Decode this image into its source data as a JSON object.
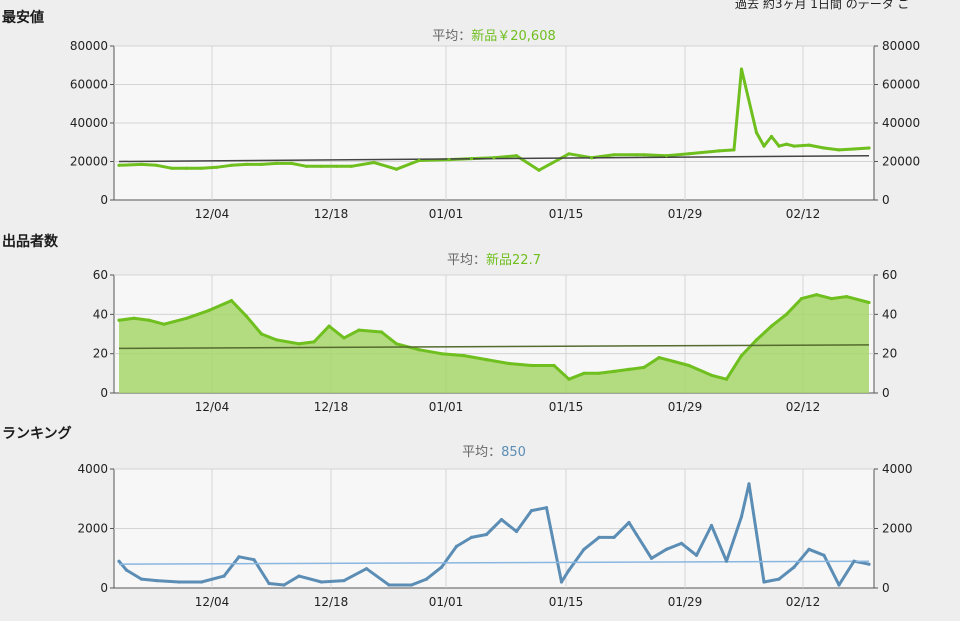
{
  "header_note": "過去 約3ヶ月 1日間 のデータ ご",
  "charts": [
    {
      "type": "line",
      "section_title": "最安値",
      "avg_label": "平均：",
      "avg_value": "新品￥20,608",
      "color": "#6fbf1f",
      "avg_color": "#444444",
      "fill": false,
      "x_ticks": [
        "12/04",
        "12/18",
        "01/01",
        "01/15",
        "01/29",
        "02/12"
      ],
      "y_ticks_left": [
        "0",
        "20000",
        "40000",
        "60000",
        "80000"
      ],
      "y_ticks_right": [
        "0",
        "20000",
        "40000",
        "60000",
        "80000"
      ],
      "ylim": [
        0,
        80000
      ],
      "avg_line": [
        20000,
        23000
      ],
      "series": {
        "x": [
          0,
          3,
          5,
          7,
          9,
          11,
          13,
          15,
          17,
          19,
          21,
          23,
          25,
          27,
          29,
          31,
          34,
          37,
          40,
          44,
          47,
          50,
          53,
          56,
          60,
          63,
          66,
          69,
          70,
          73,
          76,
          80,
          82,
          83,
          85,
          86,
          87,
          88,
          89,
          90,
          92,
          94,
          96,
          98,
          100
        ],
        "y": [
          18000,
          18500,
          18000,
          16500,
          16500,
          16500,
          17000,
          18000,
          18500,
          18500,
          19000,
          19000,
          17500,
          17500,
          17500,
          17500,
          19500,
          16000,
          20500,
          21000,
          21500,
          22000,
          23000,
          15500,
          24000,
          22000,
          23500,
          23500,
          23500,
          23000,
          24000,
          25500,
          26000,
          68000,
          35000,
          28000,
          33000,
          28000,
          29000,
          28000,
          28500,
          27000,
          26000,
          26500,
          27000
        ]
      }
    },
    {
      "type": "area",
      "section_title": "出品者数",
      "avg_label": "平均：",
      "avg_value": "新品22.7",
      "color": "#6fbf1f",
      "avg_color": "#556b2f",
      "fill": true,
      "x_ticks": [
        "12/04",
        "12/18",
        "01/01",
        "01/15",
        "01/29",
        "02/12"
      ],
      "y_ticks_left": [
        "0",
        "20",
        "40",
        "60"
      ],
      "y_ticks_right": [
        "0",
        "20",
        "40",
        "60"
      ],
      "ylim": [
        0,
        60
      ],
      "avg_line": [
        22.7,
        24.5
      ],
      "series": {
        "x": [
          0,
          2,
          4,
          6,
          9,
          12,
          15,
          17,
          19,
          21,
          24,
          26,
          28,
          30,
          32,
          35,
          37,
          40,
          43,
          46,
          49,
          52,
          55,
          58,
          60,
          62,
          64,
          66,
          68,
          70,
          72,
          74,
          76,
          79,
          81,
          83,
          85,
          87,
          89,
          91,
          93,
          95,
          97,
          100
        ],
        "y": [
          37,
          38,
          37,
          35,
          38,
          42,
          47,
          39,
          30,
          27,
          25,
          26,
          34,
          28,
          32,
          31,
          25,
          22,
          20,
          19,
          17,
          15,
          14,
          14,
          7,
          10,
          10,
          11,
          12,
          13,
          18,
          16,
          14,
          9,
          7,
          19,
          27,
          34,
          40,
          48,
          50,
          48,
          49,
          46
        ]
      }
    },
    {
      "type": "line",
      "section_title": "ランキング",
      "avg_label": "平均：",
      "avg_value": "850",
      "color": "#5b8db5",
      "avg_color": "#8ab6e0",
      "fill": false,
      "x_ticks": [
        "12/04",
        "12/18",
        "01/01",
        "01/15",
        "01/29",
        "02/12"
      ],
      "y_ticks_left": [
        "0",
        "2000",
        "4000"
      ],
      "y_ticks_right": [
        "0",
        "2000",
        "4000"
      ],
      "ylim": [
        0,
        4000
      ],
      "avg_line": [
        800,
        900
      ],
      "series": {
        "x": [
          0,
          1,
          3,
          5,
          8,
          11,
          14,
          16,
          18,
          20,
          22,
          24,
          27,
          30,
          33,
          36,
          39,
          41,
          43,
          45,
          47,
          49,
          51,
          53,
          55,
          57,
          59,
          60,
          62,
          64,
          66,
          68,
          69,
          71,
          73,
          75,
          77,
          79,
          81,
          83,
          84,
          86,
          88,
          90,
          92,
          94,
          96,
          98,
          100
        ],
        "y": [
          900,
          600,
          300,
          250,
          200,
          200,
          400,
          1050,
          950,
          150,
          100,
          400,
          200,
          250,
          650,
          100,
          100,
          300,
          700,
          1400,
          1700,
          1800,
          2300,
          1900,
          2600,
          2700,
          200,
          600,
          1300,
          1700,
          1700,
          2200,
          1800,
          1000,
          1300,
          1500,
          1100,
          2100,
          900,
          2400,
          3500,
          200,
          300,
          700,
          1300,
          1100,
          100,
          900,
          800
        ]
      }
    }
  ]
}
